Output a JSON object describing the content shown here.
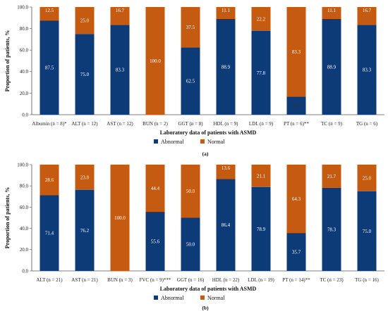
{
  "colors": {
    "abnormal": "#0d3b78",
    "normal": "#c55a11"
  },
  "legend": {
    "abnormal": "Abnormal",
    "normal": "Normal"
  },
  "chart_data": [
    {
      "type": "bar",
      "stacked": true,
      "panel_label": "(a)",
      "xlabel": "Laboratory data of patients with ASMD",
      "ylabel": "Proportion of patients, %",
      "ylim": [
        0,
        100
      ],
      "yticks": [
        "0.0",
        "20.0",
        "40.0",
        "60.0",
        "80.0",
        "100.0"
      ],
      "categories": [
        "Albumin (n = 8)*",
        "ALT (n = 12)",
        "AST (n = 12)",
        "BUN (n = 2)",
        "GGT (n = 8)",
        "HDL (n = 9)",
        "LDL (n = 9)",
        "PT (n = 6)**",
        "TC (n = 9)",
        "TG (n = 6)"
      ],
      "series": [
        {
          "name": "Abnormal",
          "values": [
            87.5,
            75.0,
            83.3,
            0,
            62.5,
            88.9,
            77.8,
            16.7,
            88.9,
            83.3
          ],
          "labels": [
            "87.5",
            "75.0",
            "83.3",
            "",
            "62.5",
            "88.9",
            "77.8",
            "16.7",
            "88.9",
            "83.3"
          ]
        },
        {
          "name": "Normal",
          "values": [
            12.5,
            25.0,
            16.7,
            100.0,
            37.5,
            11.1,
            22.2,
            83.3,
            11.1,
            16.7
          ],
          "labels": [
            "12.5",
            "25.0",
            "16.7",
            "100.0",
            "37.5",
            "11.1",
            "22.2",
            "83.3",
            "11.1",
            "16.7"
          ]
        }
      ],
      "legend_position": "bottom"
    },
    {
      "type": "bar",
      "stacked": true,
      "panel_label": "(b)",
      "xlabel": "Laboratory data of patients with ASMD",
      "ylabel": "Proportion of patients, %",
      "ylim": [
        0,
        100
      ],
      "yticks": [
        "0.0",
        "20.0",
        "40.0",
        "60.0",
        "80.0",
        "100.0"
      ],
      "categories": [
        "ALT (n = 21)",
        "AST (n = 21)",
        "BUN (n = 3)",
        "FVC (n = 9)***",
        "GGT (n = 16)",
        "HDL (n = 22)",
        "LDL (n = 19)",
        "PT (n = 14)**",
        "TC (n = 23)",
        "TG (n = 16)"
      ],
      "series": [
        {
          "name": "Abnormal",
          "values": [
            71.4,
            76.2,
            0,
            55.6,
            50.0,
            86.4,
            78.9,
            35.7,
            78.3,
            75.0
          ],
          "labels": [
            "71.4",
            "76.2",
            "",
            "55.6",
            "50.0",
            "86.4",
            "78.9",
            "35.7",
            "78.3",
            "75.0"
          ]
        },
        {
          "name": "Normal",
          "values": [
            28.6,
            23.8,
            100.0,
            44.4,
            50.0,
            13.6,
            21.1,
            64.3,
            21.7,
            25.0
          ],
          "labels": [
            "28.6",
            "23.8",
            "100.0",
            "44.4",
            "50.0",
            "13.6",
            "21.1",
            "64.3",
            "21.7",
            "25.0"
          ]
        }
      ],
      "legend_position": "bottom"
    }
  ]
}
